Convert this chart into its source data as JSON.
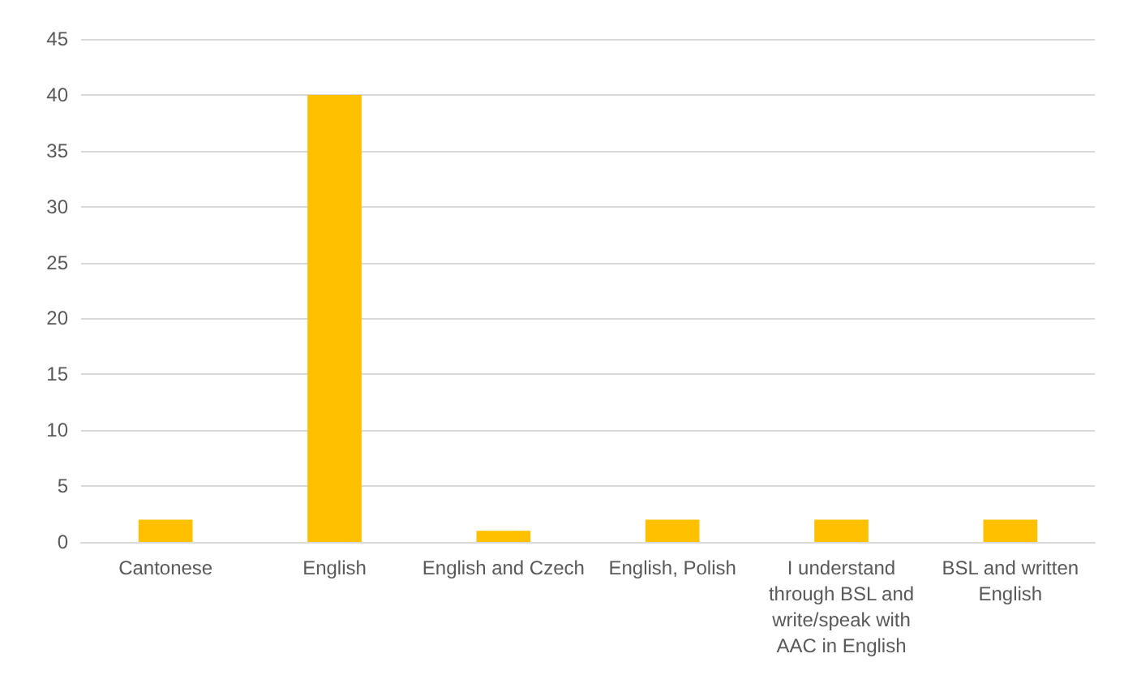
{
  "chart_data": {
    "type": "bar",
    "categories": [
      "Cantonese",
      "English",
      "English and Czech",
      "English, Polish",
      "I understand through BSL and write/speak with AAC in English",
      "BSL and written English"
    ],
    "values": [
      2,
      40,
      1,
      2,
      2,
      2
    ],
    "color": "#ffc000",
    "ylim": [
      0,
      45
    ],
    "yticks": [
      0,
      5,
      10,
      15,
      20,
      25,
      30,
      35,
      40,
      45
    ],
    "grid": true
  }
}
